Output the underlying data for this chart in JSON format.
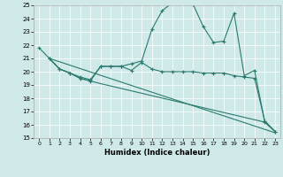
{
  "xlabel": "Humidex (Indice chaleur)",
  "xlim": [
    -0.5,
    23.5
  ],
  "ylim": [
    15,
    25
  ],
  "xticks": [
    0,
    1,
    2,
    3,
    4,
    5,
    6,
    7,
    8,
    9,
    10,
    11,
    12,
    13,
    14,
    15,
    16,
    17,
    18,
    19,
    20,
    21,
    22,
    23
  ],
  "yticks": [
    15,
    16,
    17,
    18,
    19,
    20,
    21,
    22,
    23,
    24,
    25
  ],
  "bg_color": "#cfe8e8",
  "line_color": "#2a7a6e",
  "line1_x": [
    0,
    1,
    2,
    3,
    4,
    5,
    6,
    7,
    8,
    9,
    10,
    11,
    12,
    13,
    14,
    15,
    16,
    17,
    18,
    19,
    20,
    21,
    22,
    23
  ],
  "line1_y": [
    21.8,
    21.0,
    20.2,
    19.9,
    19.5,
    19.3,
    20.4,
    20.4,
    20.4,
    20.6,
    20.8,
    23.2,
    24.6,
    25.2,
    25.2,
    25.1,
    23.4,
    22.2,
    22.3,
    24.4,
    19.7,
    20.1,
    16.2,
    15.5
  ],
  "line2_x": [
    1,
    2,
    3,
    4,
    5,
    6,
    7,
    8,
    9,
    10,
    11,
    12,
    13,
    14,
    15,
    16,
    17,
    18,
    19,
    20,
    21,
    22,
    23
  ],
  "line2_y": [
    21.0,
    20.2,
    19.9,
    19.6,
    19.4,
    20.4,
    20.4,
    20.4,
    20.1,
    20.7,
    20.2,
    20.0,
    20.0,
    20.0,
    20.0,
    19.9,
    19.9,
    19.9,
    19.7,
    19.6,
    19.5,
    16.3,
    15.5
  ],
  "line3_x": [
    1,
    2,
    3,
    4,
    5,
    6,
    22,
    23
  ],
  "line3_y": [
    21.0,
    20.2,
    19.9,
    19.5,
    19.3,
    19.1,
    16.2,
    15.5
  ],
  "line4_x": [
    1,
    23
  ],
  "line4_y": [
    21.0,
    15.4
  ]
}
